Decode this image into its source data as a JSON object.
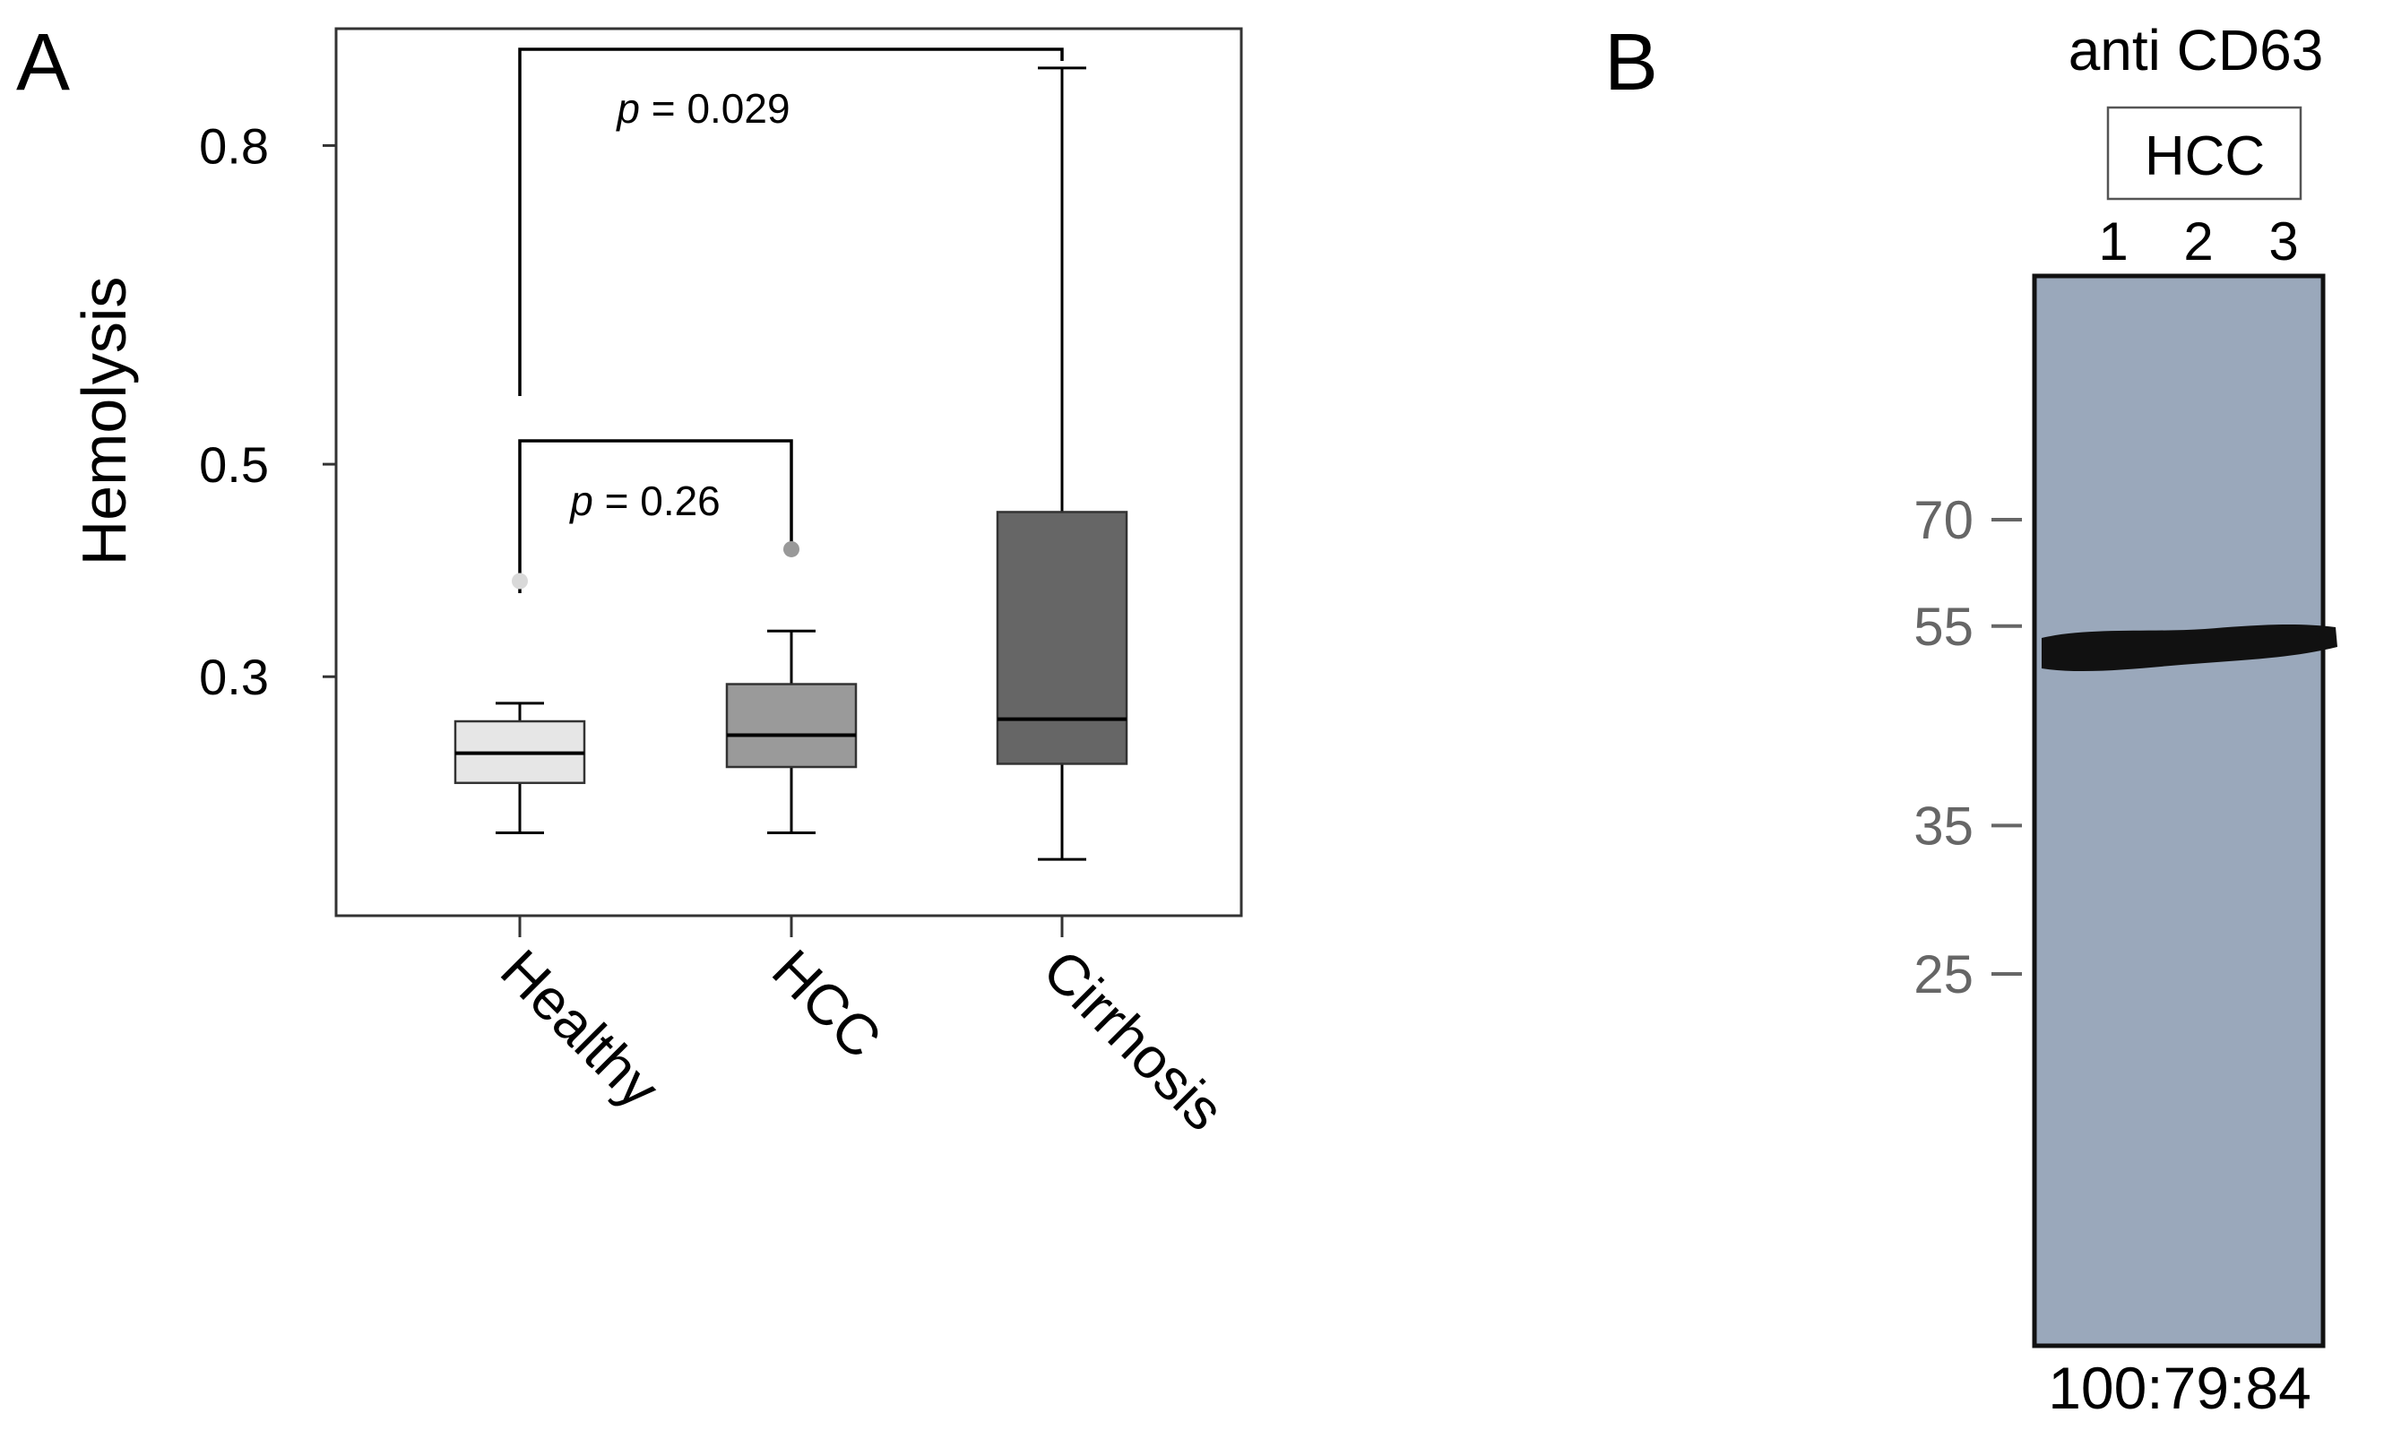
{
  "panel_labels": {
    "a": "A",
    "b": "B"
  },
  "chart_data": {
    "type": "box",
    "title": "",
    "xlabel": "",
    "ylabel": "Hemolysis",
    "ylim": [
      0.075,
      0.91
    ],
    "yticks": [
      {
        "value": 0.3,
        "label": "0.3"
      },
      {
        "value": 0.5,
        "label": "0.5"
      },
      {
        "value": 0.8,
        "label": "0.8"
      }
    ],
    "categories": [
      "Healthy",
      "HCC",
      "Cirrhosis"
    ],
    "boxes": [
      {
        "name": "Healthy",
        "min": 0.153,
        "q1": 0.2,
        "median": 0.228,
        "q3": 0.258,
        "max": 0.275,
        "outliers": [
          0.39
        ],
        "fill": "#e6e6e6",
        "outlier_color": "#d9d9d9"
      },
      {
        "name": "HCC",
        "min": 0.153,
        "q1": 0.215,
        "median": 0.245,
        "q3": 0.293,
        "max": 0.343,
        "outliers": [
          0.42
        ],
        "fill": "#9a9a9a",
        "outlier_color": "#999999"
      },
      {
        "name": "Cirrhosis",
        "min": 0.128,
        "q1": 0.218,
        "median": 0.26,
        "q3": 0.455,
        "max": 0.873,
        "outliers": [],
        "fill": "#666666",
        "outlier_color": "#666666"
      }
    ],
    "comparisons": [
      {
        "from": "Healthy",
        "to": "HCC",
        "label": "p = 0.26",
        "p_symbol": "p",
        "p_text": " = 0.26"
      },
      {
        "from": "Healthy",
        "to": "Cirrhosis",
        "label": "p = 0.029",
        "p_symbol": "p",
        "p_text": " = 0.029"
      }
    ]
  },
  "blot": {
    "antibody": "anti CD63",
    "group": "HCC",
    "lanes": [
      "1",
      "2",
      "3"
    ],
    "markers": [
      {
        "value": 70,
        "label": "70"
      },
      {
        "value": 55,
        "label": "55"
      },
      {
        "value": 35,
        "label": "35"
      },
      {
        "value": 25,
        "label": "25"
      }
    ],
    "ratio": "100:79:84",
    "membrane_color": "#9aa8bb",
    "band_color": "#111111"
  }
}
